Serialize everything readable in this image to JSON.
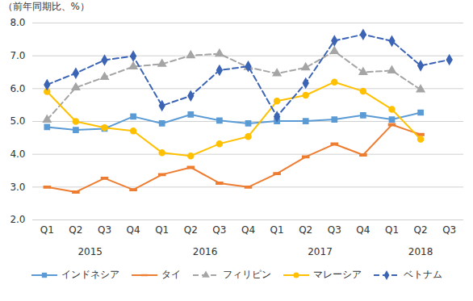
{
  "chart_data": {
    "type": "line",
    "y_label": "（前年同期比、%）",
    "categories": [
      "Q1",
      "Q2",
      "Q3",
      "Q4",
      "Q1",
      "Q2",
      "Q3",
      "Q4",
      "Q1",
      "Q2",
      "Q3",
      "Q4",
      "Q1",
      "Q2",
      "Q3"
    ],
    "group_labels": [
      "2015",
      "2016",
      "2017",
      "2018"
    ],
    "group_sizes": [
      4,
      4,
      4,
      3
    ],
    "ylim": [
      2,
      8
    ],
    "yticks": [
      2,
      3,
      4,
      5,
      6,
      7,
      8
    ],
    "grid": true,
    "legend": "bottom",
    "series": [
      {
        "name": "インドネシア",
        "color": "#5B9BD5",
        "marker": "square",
        "line_style": "solid",
        "values": [
          4.83,
          4.74,
          4.78,
          5.15,
          4.94,
          5.21,
          5.03,
          4.94,
          5.01,
          5.01,
          5.06,
          5.19,
          5.06,
          5.27,
          null
        ]
      },
      {
        "name": "タイ",
        "color": "#ED7D31",
        "marker": "dash",
        "line_style": "solid",
        "values": [
          3.0,
          2.85,
          3.27,
          2.92,
          3.38,
          3.6,
          3.12,
          3.0,
          3.41,
          3.92,
          4.31,
          3.98,
          4.9,
          4.6,
          null
        ]
      },
      {
        "name": "フィリピン",
        "color": "#A5A5A5",
        "marker": "triangle",
        "line_style": "dashed",
        "values": [
          5.05,
          6.03,
          6.35,
          6.67,
          6.75,
          7.01,
          7.06,
          6.65,
          6.46,
          6.64,
          7.14,
          6.5,
          6.55,
          5.97,
          null
        ]
      },
      {
        "name": "マレーシア",
        "color": "#FFC000",
        "marker": "circle",
        "line_style": "solid",
        "values": [
          5.91,
          5.0,
          4.81,
          4.71,
          4.05,
          3.95,
          4.32,
          4.54,
          5.62,
          5.8,
          6.2,
          5.92,
          5.37,
          4.46,
          null
        ]
      },
      {
        "name": "ベトナム",
        "color": "#3C64B4",
        "marker": "diamond",
        "line_style": "dashed",
        "values": [
          6.12,
          6.47,
          6.87,
          6.99,
          5.48,
          5.78,
          6.56,
          6.68,
          5.15,
          6.17,
          7.46,
          7.65,
          7.45,
          6.7,
          6.88
        ]
      }
    ]
  }
}
